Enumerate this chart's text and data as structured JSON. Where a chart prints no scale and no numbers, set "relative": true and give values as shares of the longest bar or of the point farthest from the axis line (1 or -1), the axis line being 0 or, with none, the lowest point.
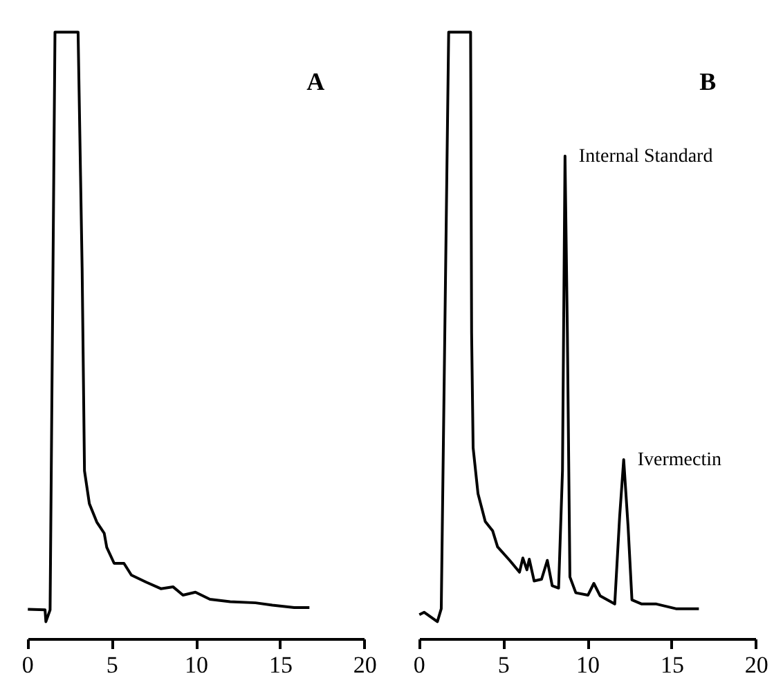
{
  "chart_data": [
    {
      "type": "line",
      "title": "A",
      "relative": true,
      "xlim": [
        0,
        20
      ],
      "xticks": [
        0,
        5,
        10,
        15,
        20
      ],
      "x": [
        0,
        1.02,
        1.07,
        1.32,
        1.61,
        2.98,
        3.22,
        3.36,
        3.65,
        4.09,
        4.53,
        4.68,
        5.12,
        5.7,
        6.14,
        7.02,
        7.89,
        8.62,
        9.2,
        9.94,
        10.8,
        12.0,
        13.5,
        14.5,
        15.8,
        16.7
      ],
      "series": [
        {
          "color": "#000000",
          "values": [
            0.021,
            0.02,
            0,
            0.02,
            1,
            1,
            0.6,
            0.256,
            0.2,
            0.169,
            0.15,
            0.126,
            0.099,
            0.099,
            0.079,
            0.067,
            0.056,
            0.059,
            0.045,
            0.05,
            0.038,
            0.034,
            0.032,
            0.028,
            0.024,
            0.024
          ]
        }
      ]
    },
    {
      "type": "line",
      "title": "B",
      "relative": true,
      "xlim": [
        0,
        20
      ],
      "xticks": [
        0,
        5,
        10,
        15,
        20
      ],
      "x": [
        0,
        0.29,
        1.07,
        1.3,
        1.74,
        3.04,
        3.1,
        3.19,
        3.48,
        3.91,
        4.35,
        4.64,
        5.36,
        5.94,
        6.14,
        6.38,
        6.52,
        6.81,
        7.25,
        7.59,
        7.88,
        8.26,
        8.49,
        8.64,
        8.78,
        8.93,
        9.28,
        10.0,
        10.35,
        10.72,
        11.59,
        11.88,
        12.12,
        12.38,
        12.61,
        13.19,
        14.06,
        15.22,
        16.58
      ],
      "series": [
        {
          "color": "#000000",
          "values": [
            0.012,
            0.016,
            0,
            0.022,
            1,
            1,
            0.49,
            0.295,
            0.217,
            0.17,
            0.154,
            0.127,
            0.104,
            0.084,
            0.108,
            0.088,
            0.106,
            0.069,
            0.072,
            0.104,
            0.061,
            0.057,
            0.256,
            0.79,
            0.49,
            0.076,
            0.049,
            0.045,
            0.065,
            0.044,
            0.03,
            0.178,
            0.275,
            0.162,
            0.037,
            0.03,
            0.03,
            0.022,
            0.022
          ]
        }
      ],
      "annotations": [
        {
          "text": "Internal Standard",
          "x": 8.64,
          "y": 0.79
        },
        {
          "text": "Ivermectin",
          "x": 12.12,
          "y": 0.275
        }
      ]
    }
  ]
}
